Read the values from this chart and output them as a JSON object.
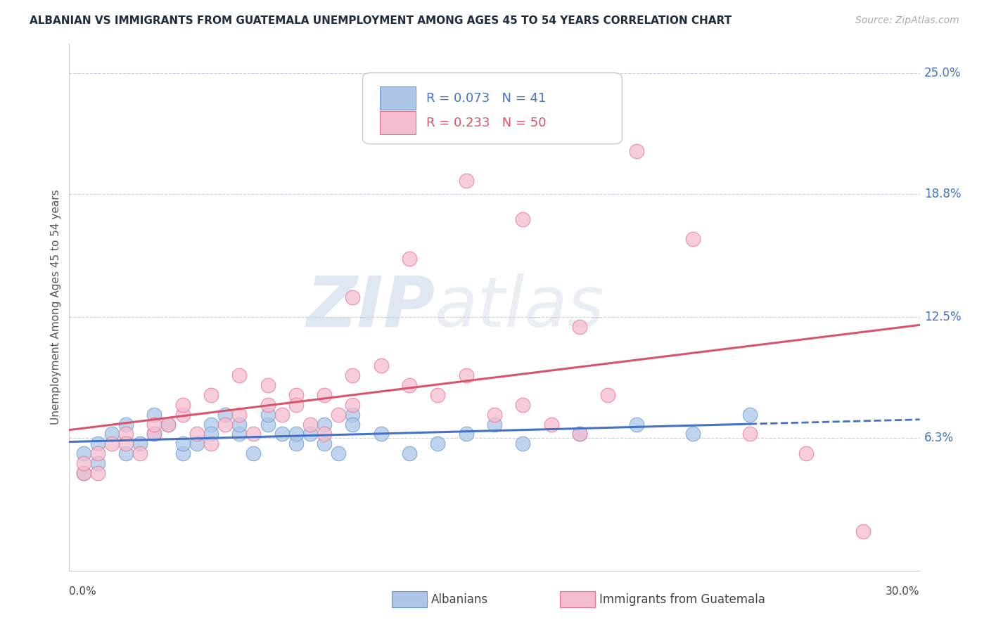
{
  "title": "ALBANIAN VS IMMIGRANTS FROM GUATEMALA UNEMPLOYMENT AMONG AGES 45 TO 54 YEARS CORRELATION CHART",
  "source_text": "Source: ZipAtlas.com",
  "ylabel": "Unemployment Among Ages 45 to 54 years",
  "xlim": [
    0.0,
    0.3
  ],
  "ylim": [
    -0.005,
    0.265
  ],
  "r_albanian": 0.073,
  "n_albanian": 41,
  "r_guatemalan": 0.233,
  "n_guatemalan": 50,
  "albanian_color": "#adc6e8",
  "albanian_edge_color": "#6699cc",
  "guatemalan_color": "#f5bdd0",
  "guatemalan_edge_color": "#e87090",
  "albanian_line_color": "#4472c4",
  "guatemalan_line_color": "#d9546a",
  "title_color": "#1f2d3d",
  "label_color": "#4472c4",
  "grid_color": "#c8d0e0",
  "ytick_positions": [
    0.063,
    0.125,
    0.188,
    0.25
  ],
  "ytick_labels": [
    "6.3%",
    "12.5%",
    "18.8%",
    "25.0%"
  ],
  "albanian_x": [
    0.005,
    0.01,
    0.015,
    0.02,
    0.025,
    0.03,
    0.035,
    0.04,
    0.045,
    0.05,
    0.055,
    0.06,
    0.065,
    0.07,
    0.075,
    0.08,
    0.085,
    0.09,
    0.095,
    0.1,
    0.005,
    0.01,
    0.02,
    0.03,
    0.04,
    0.05,
    0.06,
    0.07,
    0.08,
    0.09,
    0.1,
    0.11,
    0.12,
    0.13,
    0.14,
    0.15,
    0.16,
    0.18,
    0.2,
    0.22,
    0.24
  ],
  "albanian_y": [
    0.055,
    0.06,
    0.065,
    0.07,
    0.06,
    0.065,
    0.07,
    0.055,
    0.06,
    0.07,
    0.075,
    0.065,
    0.055,
    0.07,
    0.065,
    0.06,
    0.065,
    0.07,
    0.055,
    0.075,
    0.045,
    0.05,
    0.055,
    0.075,
    0.06,
    0.065,
    0.07,
    0.075,
    0.065,
    0.06,
    0.07,
    0.065,
    0.055,
    0.06,
    0.065,
    0.07,
    0.06,
    0.065,
    0.07,
    0.065,
    0.075
  ],
  "guatemalan_x": [
    0.005,
    0.01,
    0.015,
    0.02,
    0.025,
    0.03,
    0.035,
    0.04,
    0.045,
    0.05,
    0.055,
    0.06,
    0.065,
    0.07,
    0.075,
    0.08,
    0.085,
    0.09,
    0.095,
    0.1,
    0.005,
    0.01,
    0.02,
    0.03,
    0.04,
    0.05,
    0.06,
    0.07,
    0.08,
    0.09,
    0.1,
    0.11,
    0.12,
    0.13,
    0.14,
    0.15,
    0.16,
    0.17,
    0.18,
    0.19,
    0.1,
    0.12,
    0.14,
    0.16,
    0.18,
    0.2,
    0.22,
    0.24,
    0.26,
    0.28
  ],
  "guatemalan_y": [
    0.045,
    0.055,
    0.06,
    0.065,
    0.055,
    0.065,
    0.07,
    0.075,
    0.065,
    0.06,
    0.07,
    0.075,
    0.065,
    0.08,
    0.075,
    0.085,
    0.07,
    0.065,
    0.075,
    0.08,
    0.05,
    0.045,
    0.06,
    0.07,
    0.08,
    0.085,
    0.095,
    0.09,
    0.08,
    0.085,
    0.095,
    0.1,
    0.09,
    0.085,
    0.095,
    0.075,
    0.08,
    0.07,
    0.065,
    0.085,
    0.135,
    0.155,
    0.195,
    0.175,
    0.12,
    0.21,
    0.165,
    0.065,
    0.055,
    0.015
  ]
}
